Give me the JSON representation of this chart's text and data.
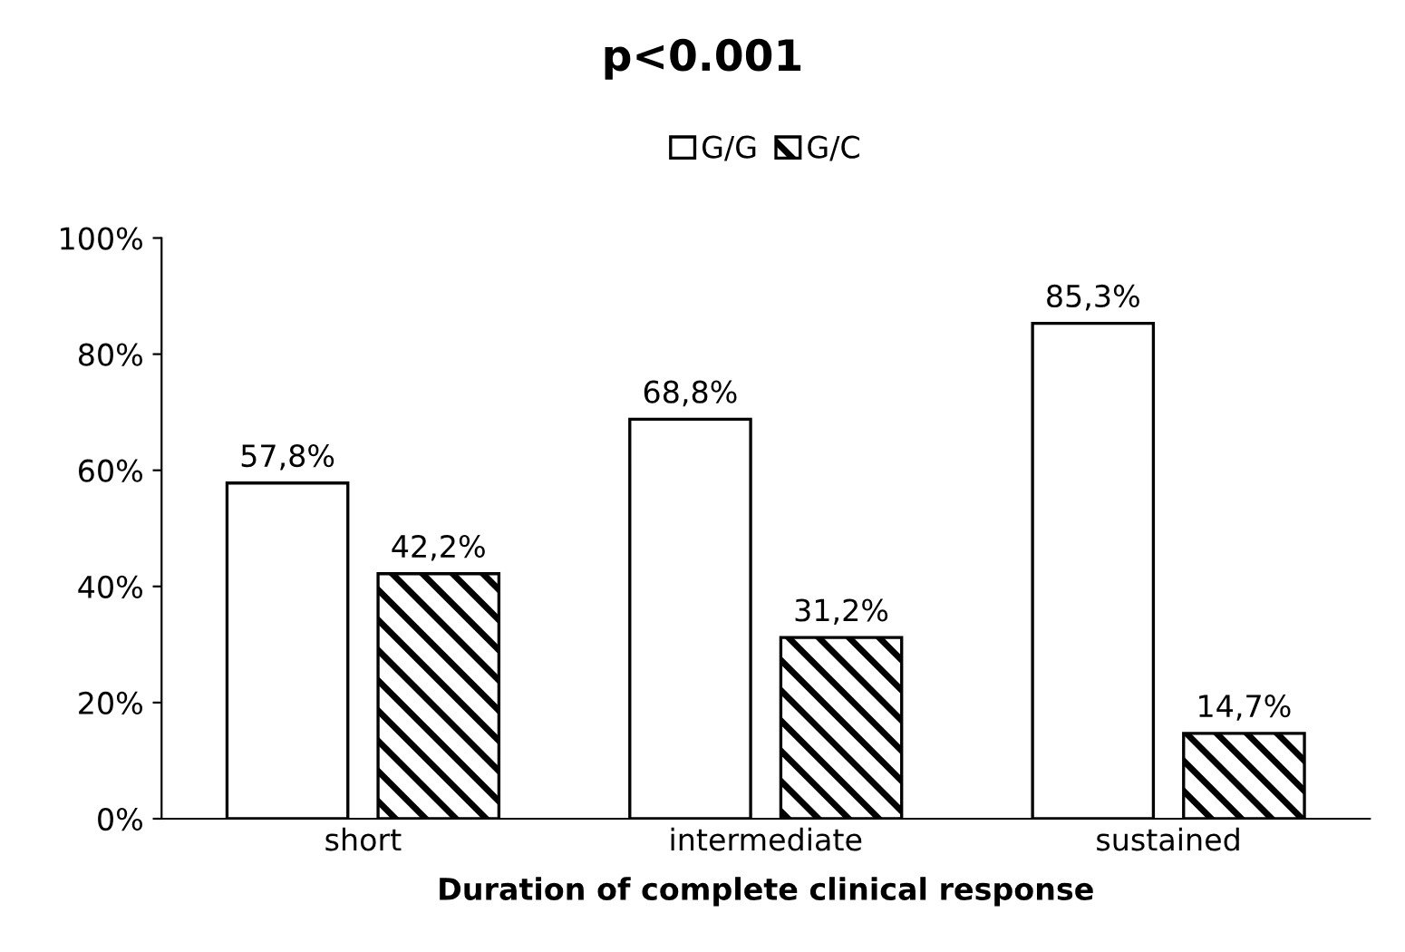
{
  "chart_data": {
    "type": "bar",
    "title": "p<0.001",
    "xlabel": "Duration of complete clinical response",
    "categories": [
      "short",
      "intermediate",
      "sustained"
    ],
    "series": [
      {
        "name": "G/G",
        "color": "#ffffff",
        "values": [
          57.8,
          68.8,
          85.3
        ],
        "value_labels": [
          "57,8%",
          "68,8%",
          "85,3%"
        ]
      },
      {
        "name": "G/C",
        "color": "#000000",
        "values": [
          42.2,
          31.2,
          14.7
        ],
        "value_labels": [
          "42,2%",
          "31,2%",
          "14,7%"
        ]
      }
    ],
    "ylim": [
      0,
      100
    ],
    "yticks": [
      {
        "value": 0,
        "label": "0%"
      },
      {
        "value": 20,
        "label": "20%"
      },
      {
        "value": 40,
        "label": "40%"
      },
      {
        "value": 60,
        "label": "60%"
      },
      {
        "value": 80,
        "label": "80%"
      },
      {
        "value": 100,
        "label": "100%"
      }
    ],
    "grid": false,
    "legend": "top"
  }
}
